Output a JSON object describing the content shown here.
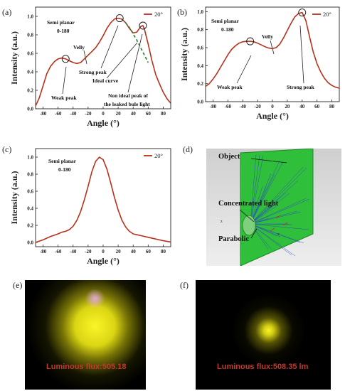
{
  "panels": {
    "a": {
      "label": "(a)",
      "annotations": {
        "semi": "Semi planar",
        "range": "0-180",
        "weak": "Weak peak",
        "velly": "Velly",
        "strong": "Strong peak",
        "ideal": "Ideal curve",
        "nonideal1": "Non ideal peak of",
        "nonideal2": "the leaked bule light"
      }
    },
    "b": {
      "label": "(b)",
      "annotations": {
        "semi": "Semi planar",
        "range": "0-180",
        "velly": "Velly",
        "weak": "Weak peak",
        "strong": "Strong peak"
      }
    },
    "c": {
      "label": "(c)",
      "annotations": {
        "semi": "Semi planar",
        "range": "0-180"
      }
    },
    "d": {
      "label": "(d)",
      "object": "Object",
      "concentrated": "Concentrated light",
      "parabolic": "Parabolic",
      "axis_z": "z",
      "axis_x": "x"
    },
    "e": {
      "label": "(e)",
      "flux": "Luminous flux:505.18"
    },
    "f": {
      "label": "(f)",
      "flux": "Luminous flux:508.35 lm"
    }
  },
  "colors": {
    "curve": "#b5321c",
    "dashed": "#2e7d32",
    "green_plate": "#2fbf3a",
    "rays": "#2a45c8",
    "yellow": "#e8e000"
  },
  "chart_data": [
    {
      "id": "a",
      "type": "line",
      "xlabel": "Angle (°)",
      "ylabel": "Intensity (a.u.)",
      "xlim": [
        -90,
        90
      ],
      "ylim": [
        0,
        1.1
      ],
      "xticks": [
        -80,
        -60,
        -40,
        -20,
        0,
        20,
        40,
        60,
        80
      ],
      "yticks": [
        0.0,
        0.2,
        0.4,
        0.6,
        0.8,
        1.0
      ],
      "legend": "top-right",
      "series": [
        {
          "name": "20°",
          "x": [
            -90,
            -85,
            -80,
            -75,
            -70,
            -65,
            -60,
            -55,
            -50,
            -45,
            -40,
            -35,
            -30,
            -25,
            -20,
            -15,
            -10,
            -5,
            0,
            5,
            10,
            15,
            20,
            25,
            30,
            35,
            40,
            45,
            50,
            53,
            55,
            60,
            65,
            70,
            75,
            80,
            85,
            90
          ],
          "y": [
            0.03,
            0.12,
            0.25,
            0.38,
            0.46,
            0.51,
            0.54,
            0.55,
            0.54,
            0.52,
            0.5,
            0.49,
            0.5,
            0.54,
            0.58,
            0.62,
            0.66,
            0.72,
            0.79,
            0.87,
            0.93,
            0.97,
            0.98,
            0.97,
            0.93,
            0.87,
            0.82,
            0.83,
            0.89,
            0.9,
            0.86,
            0.7,
            0.52,
            0.37,
            0.27,
            0.18,
            0.11,
            0.06
          ]
        },
        {
          "name": "Ideal curve",
          "style": "dashed",
          "x": [
            25,
            30,
            35,
            40,
            45,
            50,
            55,
            60
          ],
          "y": [
            0.97,
            0.93,
            0.88,
            0.81,
            0.74,
            0.66,
            0.58,
            0.5
          ]
        }
      ],
      "markers": [
        [
          -50,
          0.54
        ],
        [
          22,
          0.98
        ],
        [
          53,
          0.9
        ]
      ]
    },
    {
      "id": "b",
      "type": "line",
      "xlabel": "Angle (°)",
      "ylabel": "Intensity (a.u.)",
      "xlim": [
        -90,
        90
      ],
      "ylim": [
        0,
        1.05
      ],
      "xticks": [
        -80,
        -60,
        -40,
        -20,
        0,
        20,
        40,
        60,
        80
      ],
      "yticks": [
        0.0,
        0.2,
        0.4,
        0.6,
        0.8,
        1.0
      ],
      "legend": "top-right",
      "series": [
        {
          "name": "20°",
          "x": [
            -90,
            -85,
            -80,
            -75,
            -70,
            -65,
            -60,
            -55,
            -50,
            -45,
            -40,
            -35,
            -30,
            -25,
            -20,
            -15,
            -10,
            -5,
            0,
            5,
            10,
            15,
            20,
            25,
            30,
            35,
            40,
            45,
            50,
            55,
            60,
            65,
            70,
            75,
            80,
            85,
            90
          ],
          "y": [
            0.17,
            0.2,
            0.25,
            0.31,
            0.38,
            0.45,
            0.52,
            0.58,
            0.62,
            0.65,
            0.665,
            0.67,
            0.67,
            0.665,
            0.65,
            0.63,
            0.61,
            0.595,
            0.59,
            0.6,
            0.64,
            0.71,
            0.79,
            0.87,
            0.94,
            0.98,
            0.99,
            0.9,
            0.72,
            0.55,
            0.42,
            0.33,
            0.26,
            0.21,
            0.18,
            0.16,
            0.15
          ]
        }
      ],
      "markers": [
        [
          -30,
          0.67
        ],
        [
          40,
          0.99
        ]
      ]
    },
    {
      "id": "c",
      "type": "line",
      "xlabel": "Angle (°)",
      "ylabel": "Intensity (a.u.)",
      "xlim": [
        -90,
        90
      ],
      "ylim": [
        -0.05,
        1.1
      ],
      "xticks": [
        -80,
        -60,
        -40,
        -20,
        0,
        20,
        40,
        60,
        80
      ],
      "yticks": [
        0.0,
        0.2,
        0.4,
        0.6,
        0.8,
        1.0
      ],
      "legend": "top-right",
      "series": [
        {
          "name": "20°",
          "x": [
            -90,
            -80,
            -70,
            -60,
            -55,
            -50,
            -45,
            -40,
            -35,
            -30,
            -25,
            -20,
            -15,
            -10,
            -5,
            0,
            5,
            10,
            15,
            20,
            25,
            30,
            35,
            40,
            45,
            50,
            60,
            70,
            80,
            90
          ],
          "y": [
            0.0,
            0.03,
            0.07,
            0.1,
            0.12,
            0.13,
            0.15,
            0.19,
            0.26,
            0.36,
            0.5,
            0.66,
            0.83,
            0.95,
            1.0,
            0.97,
            0.86,
            0.7,
            0.53,
            0.38,
            0.26,
            0.18,
            0.13,
            0.1,
            0.09,
            0.08,
            0.06,
            0.04,
            0.02,
            0.005
          ]
        }
      ],
      "markers": []
    }
  ]
}
